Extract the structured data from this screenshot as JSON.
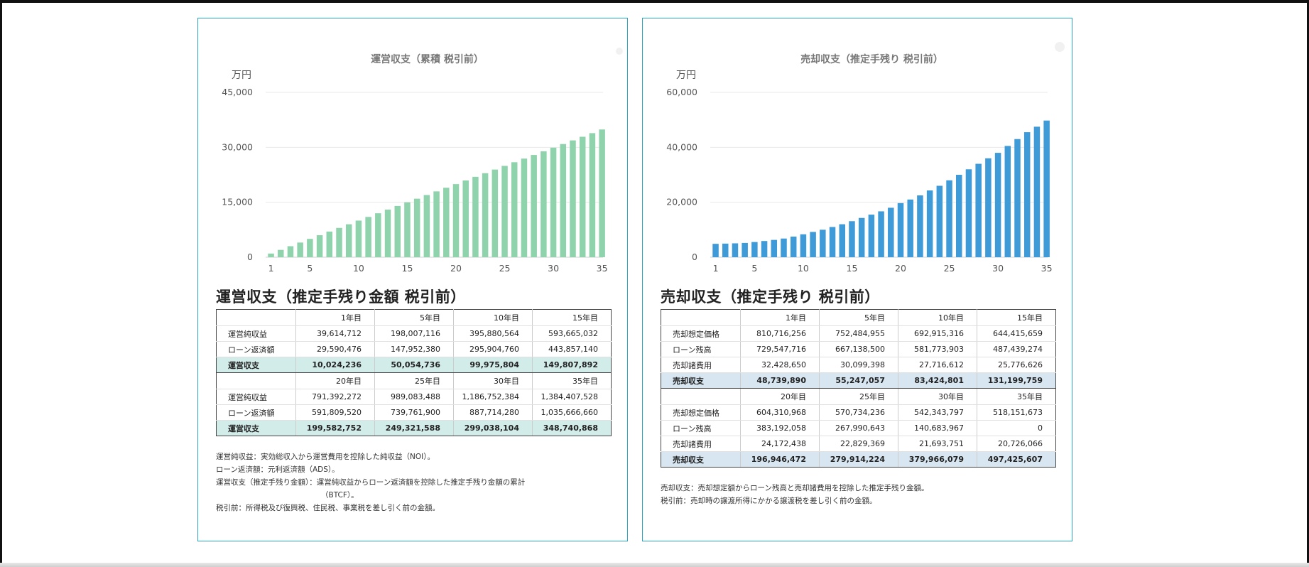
{
  "left": {
    "chart_data": {
      "type": "bar",
      "title": "運営収支（累積 税引前）",
      "ylabel": "万円",
      "ylim": [
        0,
        45000
      ],
      "yticks": [
        "0",
        "15,000",
        "30,000",
        "45,000"
      ],
      "ytick_values": [
        0,
        15000,
        30000,
        45000
      ],
      "xticks": [
        "1",
        "5",
        "10",
        "15",
        "20",
        "25",
        "30",
        "35"
      ],
      "xtick_values": [
        1,
        5,
        10,
        15,
        20,
        25,
        30,
        35
      ],
      "grid": true,
      "color": "#8fd3ad",
      "x": [
        1,
        2,
        3,
        4,
        5,
        6,
        7,
        8,
        9,
        10,
        11,
        12,
        13,
        14,
        15,
        16,
        17,
        18,
        19,
        20,
        21,
        22,
        23,
        24,
        25,
        26,
        27,
        28,
        29,
        30,
        31,
        32,
        33,
        34,
        35
      ],
      "values": [
        1002,
        2004,
        3005,
        4006,
        5005,
        6004,
        7002,
        7999,
        8996,
        9998,
        10998,
        11996,
        12994,
        13990,
        14981,
        15979,
        16976,
        17970,
        18963,
        19958,
        20953,
        21949,
        22940,
        23930,
        24932,
        25929,
        26924,
        27916,
        28908,
        29904,
        30897,
        31888,
        32879,
        33871,
        34874
      ]
    },
    "section_title": "運営収支（推定手残り金額 税引前）",
    "table": {
      "top": {
        "headers": [
          "",
          "1年目",
          "5年目",
          "10年目",
          "15年目"
        ],
        "rows": [
          [
            "運営純収益",
            "39,614,712",
            "198,007,116",
            "395,880,564",
            "593,665,032"
          ],
          [
            "ローン返済額",
            "29,590,476",
            "147,952,380",
            "295,904,760",
            "443,857,140"
          ]
        ],
        "total": [
          "運営収支",
          "10,024,236",
          "50,054,736",
          "99,975,804",
          "149,807,892"
        ]
      },
      "bottom": {
        "headers": [
          "",
          "20年目",
          "25年目",
          "30年目",
          "35年目"
        ],
        "rows": [
          [
            "運営純収益",
            "791,392,272",
            "989,083,488",
            "1,186,752,384",
            "1,384,407,528"
          ],
          [
            "ローン返済額",
            "591,809,520",
            "739,761,900",
            "887,714,280",
            "1,035,666,660"
          ]
        ],
        "total": [
          "運営収支",
          "199,582,752",
          "249,321,588",
          "299,038,104",
          "348,740,868"
        ]
      }
    },
    "notes": [
      {
        "k": "運営純収益：",
        "v": "実効総収入から運営費用を控除した純収益（NOI）。"
      },
      {
        "k": "ローン返済額：",
        "v": "元利返済額（ADS）。"
      },
      {
        "k": "運営収支（推定手残り金額）：",
        "v": "運営純収益からローン返済額を控除した推定手残り金額の累計"
      },
      {
        "k": "",
        "v": "（BTCF）。"
      },
      {
        "k": "税引前：",
        "v": "所得税及び復興税、住民税、事業税を差し引く前の金額。"
      }
    ]
  },
  "right": {
    "chart_data": {
      "type": "bar",
      "title": "売却収支（推定手残り 税引前）",
      "ylabel": "万円",
      "ylim": [
        0,
        60000
      ],
      "yticks": [
        "0",
        "20,000",
        "40,000",
        "60,000"
      ],
      "ytick_values": [
        0,
        20000,
        40000,
        60000
      ],
      "xticks": [
        "1",
        "5",
        "10",
        "15",
        "20",
        "25",
        "30",
        "35"
      ],
      "xtick_values": [
        1,
        5,
        10,
        15,
        20,
        25,
        30,
        35
      ],
      "grid": true,
      "color": "#3e9bd8",
      "x": [
        1,
        2,
        3,
        4,
        5,
        6,
        7,
        8,
        9,
        10,
        11,
        12,
        13,
        14,
        15,
        16,
        17,
        18,
        19,
        20,
        21,
        22,
        23,
        24,
        25,
        26,
        27,
        28,
        29,
        30,
        31,
        32,
        33,
        34,
        35
      ],
      "values": [
        4874,
        4950,
        5050,
        5200,
        5525,
        5900,
        6300,
        6800,
        7500,
        8342,
        9200,
        10000,
        11000,
        12000,
        13120,
        14300,
        15500,
        16700,
        18000,
        19695,
        21000,
        22500,
        24300,
        26000,
        27991,
        30000,
        32000,
        34000,
        36000,
        37997,
        40500,
        43000,
        45500,
        47500,
        49743
      ]
    },
    "section_title": "売却収支（推定手残り 税引前）",
    "table": {
      "top": {
        "headers": [
          "",
          "1年目",
          "5年目",
          "10年目",
          "15年目"
        ],
        "rows": [
          [
            "売却想定価格",
            "810,716,256",
            "752,484,955",
            "692,915,316",
            "644,415,659"
          ],
          [
            "ローン残高",
            "729,547,716",
            "667,138,500",
            "581,773,903",
            "487,439,274"
          ],
          [
            "売却諸費用",
            "32,428,650",
            "30,099,398",
            "27,716,612",
            "25,776,626"
          ]
        ],
        "total": [
          "売却収支",
          "48,739,890",
          "55,247,057",
          "83,424,801",
          "131,199,759"
        ]
      },
      "bottom": {
        "headers": [
          "",
          "20年目",
          "25年目",
          "30年目",
          "35年目"
        ],
        "rows": [
          [
            "売却想定価格",
            "604,310,968",
            "570,734,236",
            "542,343,797",
            "518,151,673"
          ],
          [
            "ローン残高",
            "383,192,058",
            "267,990,643",
            "140,683,967",
            "0"
          ],
          [
            "売却諸費用",
            "24,172,438",
            "22,829,369",
            "21,693,751",
            "20,726,066"
          ]
        ],
        "total": [
          "売却収支",
          "196,946,472",
          "279,914,224",
          "379,966,079",
          "497,425,607"
        ]
      }
    },
    "notes": [
      {
        "k": "売却収支：",
        "v": "売却想定額からローン残高と売却諸費用を控除した推定手残り金額。"
      },
      {
        "k": "税引前：",
        "v": "売却時の譲渡所得にかかる譲渡税を差し引く前の金額。"
      }
    ]
  }
}
